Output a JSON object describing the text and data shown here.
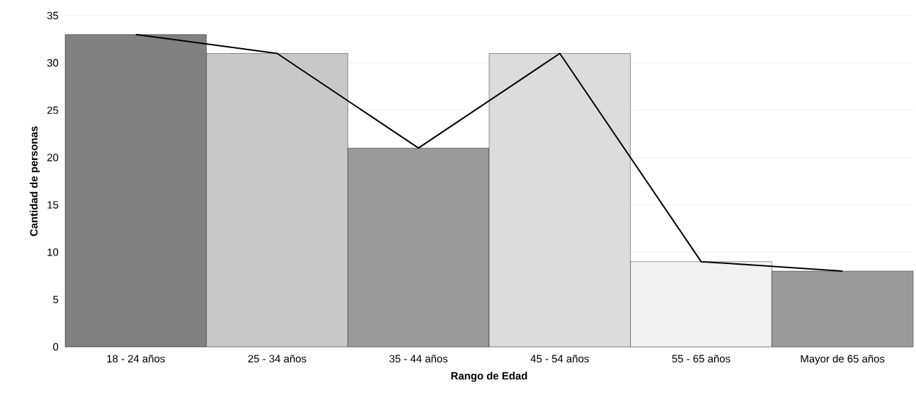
{
  "chart_data": {
    "type": "bar",
    "xlabel": "Rango de Edad",
    "ylabel": "Cantidad de personas",
    "categories": [
      "18 - 24 años",
      "25 - 34 años",
      "35 - 44 años",
      "45 - 54 años",
      "55 - 65 años",
      "Mayor de 65 años"
    ],
    "series": [
      {
        "values": [
          33,
          31,
          21,
          31,
          9,
          8
        ],
        "colors": [
          "#808080",
          "#c8c8c8",
          "#9a9a9a",
          "#dcdcdc",
          "#f2f2f2",
          "#9a9a9a"
        ]
      },
      {
        "type": "line",
        "color": "#000000",
        "values": [
          33,
          31,
          21,
          31,
          9,
          8
        ]
      }
    ],
    "ylim": [
      0,
      35
    ],
    "yticks": [
      0,
      5,
      10,
      15,
      20,
      25,
      30,
      35
    ],
    "grid": "y"
  }
}
